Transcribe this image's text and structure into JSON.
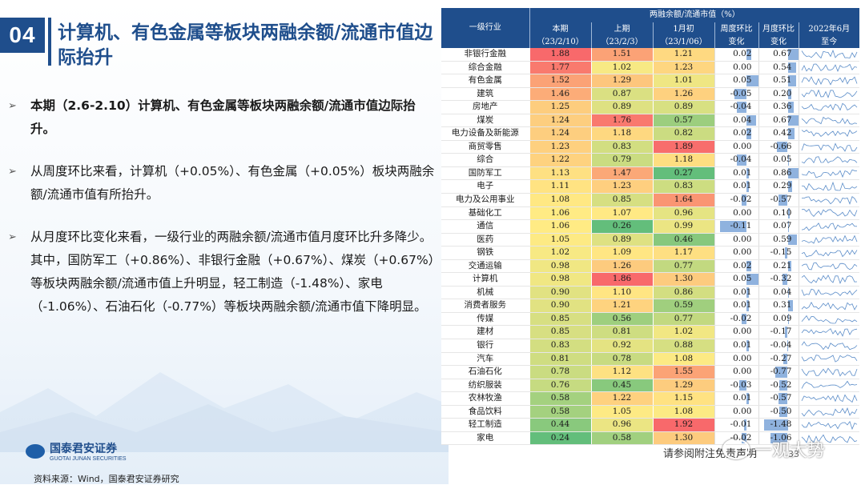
{
  "header": {
    "section_no": "04",
    "title": "计算机、有色金属等板块两融余额/流通市值边际抬升"
  },
  "bullets": [
    {
      "text": "本期（2.6-2.10）计算机、有色金属等板块两融余额/流通市值边际抬升。",
      "bold": true
    },
    {
      "text": "从周度环比来看，计算机（+0.05%）、有色金属（+0.05%）板块两融余额/流通市值有所抬升。",
      "bold": false
    },
    {
      "text": "从月度环比变化来看，一级行业的两融余额/流通市值月度环比升多降少。其中，国防军工（+0.86%）、非银行金融（+0.67%）、煤炭（+0.67%）等板块两融余额/流通市值上升明显，轻工制造（-1.48%）、家电（-1.06%）、石油石化（-0.77%）等板块两融余额/流通市值下降明显。",
      "bold": false
    }
  ],
  "footer": {
    "logo_cn": "国泰君安证券",
    "logo_en": "GUOTAI JUNAN SECURITIES",
    "source": "资料来源：Wind，国泰君安证券研究",
    "disclaimer": "请参阅附注免责声明",
    "watermark": "一观大势",
    "page": "33"
  },
  "table": {
    "group_header": "两融余额/流通市值（%）",
    "col_industry": "一级行业",
    "col_current": [
      "本期",
      "（23/2/10）"
    ],
    "col_prev": [
      "上期",
      "（23/2/3）"
    ],
    "col_month_start": [
      "1月初",
      "（23/1/06）"
    ],
    "col_week_chg": [
      "周度环比",
      "变化"
    ],
    "col_month_chg": [
      "月度环比",
      "变化"
    ],
    "col_trend": [
      "2022年6月",
      "至今"
    ],
    "colors": {
      "high": "#f8696b",
      "mid": "#ffeb84",
      "low": "#63be7b",
      "bar": "#8fb2de",
      "header": "#1f4e8c"
    },
    "rows": [
      {
        "name": "非银行金融",
        "cur": "1.88",
        "prev": "1.51",
        "jan": "1.21",
        "wk": "0.02",
        "mo": "0.67"
      },
      {
        "name": "综合金融",
        "cur": "1.77",
        "prev": "1.02",
        "jan": "1.23",
        "wk": "0.00",
        "mo": "0.54"
      },
      {
        "name": "有色金属",
        "cur": "1.52",
        "prev": "1.29",
        "jan": "1.01",
        "wk": "0.05",
        "mo": "0.51"
      },
      {
        "name": "建筑",
        "cur": "1.46",
        "prev": "0.87",
        "jan": "1.26",
        "wk": "-0.05",
        "mo": "0.20"
      },
      {
        "name": "房地产",
        "cur": "1.25",
        "prev": "0.89",
        "jan": "0.89",
        "wk": "-0.04",
        "mo": "0.36"
      },
      {
        "name": "煤炭",
        "cur": "1.24",
        "prev": "1.76",
        "jan": "0.57",
        "wk": "0.04",
        "mo": "0.67"
      },
      {
        "name": "电力设备及新能源",
        "cur": "1.24",
        "prev": "1.18",
        "jan": "0.82",
        "wk": "0.02",
        "mo": "0.42"
      },
      {
        "name": "商贸零售",
        "cur": "1.23",
        "prev": "0.83",
        "jan": "1.89",
        "wk": "0.00",
        "mo": "-0.66"
      },
      {
        "name": "综合",
        "cur": "1.22",
        "prev": "0.79",
        "jan": "1.18",
        "wk": "-0.04",
        "mo": "0.05"
      },
      {
        "name": "国防军工",
        "cur": "1.13",
        "prev": "1.47",
        "jan": "0.27",
        "wk": "0.01",
        "mo": "0.86"
      },
      {
        "name": "电子",
        "cur": "1.11",
        "prev": "1.23",
        "jan": "0.83",
        "wk": "0.01",
        "mo": "0.29"
      },
      {
        "name": "电力及公用事业",
        "cur": "1.08",
        "prev": "0.85",
        "jan": "1.64",
        "wk": "-0.02",
        "mo": "-0.57"
      },
      {
        "name": "基础化工",
        "cur": "1.06",
        "prev": "1.07",
        "jan": "0.96",
        "wk": "0.00",
        "mo": "0.10"
      },
      {
        "name": "通信",
        "cur": "1.06",
        "prev": "0.26",
        "jan": "0.99",
        "wk": "-0.11",
        "mo": "0.07"
      },
      {
        "name": "医药",
        "cur": "1.05",
        "prev": "0.89",
        "jan": "0.46",
        "wk": "0.00",
        "mo": "0.59"
      },
      {
        "name": "钢铁",
        "cur": "1.02",
        "prev": "1.09",
        "jan": "1.17",
        "wk": "0.00",
        "mo": "-0.15"
      },
      {
        "name": "交通运输",
        "cur": "0.98",
        "prev": "1.26",
        "jan": "0.77",
        "wk": "0.02",
        "mo": "0.21"
      },
      {
        "name": "计算机",
        "cur": "0.98",
        "prev": "1.86",
        "jan": "1.30",
        "wk": "0.05",
        "mo": "-0.32"
      },
      {
        "name": "机械",
        "cur": "0.90",
        "prev": "1.10",
        "jan": "0.86",
        "wk": "0.01",
        "mo": "0.04"
      },
      {
        "name": "消费者服务",
        "cur": "0.90",
        "prev": "1.21",
        "jan": "0.59",
        "wk": "0.01",
        "mo": "0.31"
      },
      {
        "name": "传媒",
        "cur": "0.85",
        "prev": "0.56",
        "jan": "0.77",
        "wk": "-0.02",
        "mo": "0.09"
      },
      {
        "name": "建材",
        "cur": "0.85",
        "prev": "0.81",
        "jan": "1.02",
        "wk": "0.00",
        "mo": "-0.17"
      },
      {
        "name": "银行",
        "cur": "0.83",
        "prev": "0.92",
        "jan": "0.88",
        "wk": "0.01",
        "mo": "-0.04"
      },
      {
        "name": "汽车",
        "cur": "0.81",
        "prev": "0.78",
        "jan": "1.08",
        "wk": "0.00",
        "mo": "-0.27"
      },
      {
        "name": "石油石化",
        "cur": "0.78",
        "prev": "1.12",
        "jan": "1.55",
        "wk": "0.00",
        "mo": "-0.77"
      },
      {
        "name": "纺织服装",
        "cur": "0.76",
        "prev": "0.45",
        "jan": "1.29",
        "wk": "-0.03",
        "mo": "-0.52"
      },
      {
        "name": "农林牧渔",
        "cur": "0.58",
        "prev": "1.22",
        "jan": "1.15",
        "wk": "0.01",
        "mo": "-0.57"
      },
      {
        "name": "食品饮料",
        "cur": "0.58",
        "prev": "1.05",
        "jan": "1.08",
        "wk": "0.00",
        "mo": "-0.50"
      },
      {
        "name": "轻工制造",
        "cur": "0.44",
        "prev": "0.96",
        "jan": "1.92",
        "wk": "-0.01",
        "mo": "-1.48"
      },
      {
        "name": "家电",
        "cur": "0.24",
        "prev": "0.58",
        "jan": "1.30",
        "wk": "-0.02",
        "mo": "-1.06"
      }
    ]
  }
}
